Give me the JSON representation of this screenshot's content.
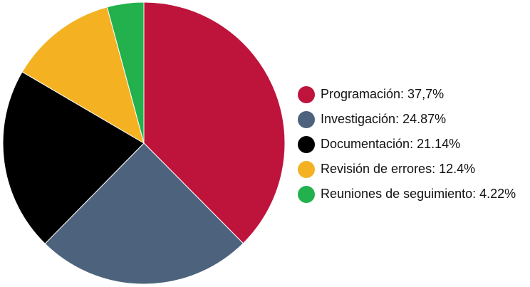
{
  "chart_data": {
    "type": "pie",
    "title": "",
    "slices": [
      {
        "label": "Programación: 37,7%",
        "value": 37.7,
        "color": "#BE143C"
      },
      {
        "label": "Investigación: 24.87%",
        "value": 24.87,
        "color": "#4D627C"
      },
      {
        "label": "Documentación: 21.14%",
        "value": 21.14,
        "color": "#000000"
      },
      {
        "label": "Revisión de errores: 12.4%",
        "value": 12.4,
        "color": "#F4B223"
      },
      {
        "label": "Reuniones de seguimiento: 4.22%",
        "value": 4.22,
        "color": "#22B14C"
      }
    ],
    "start_angle": "12 o'clock",
    "direction": "clockwise",
    "legend_position": "right"
  }
}
